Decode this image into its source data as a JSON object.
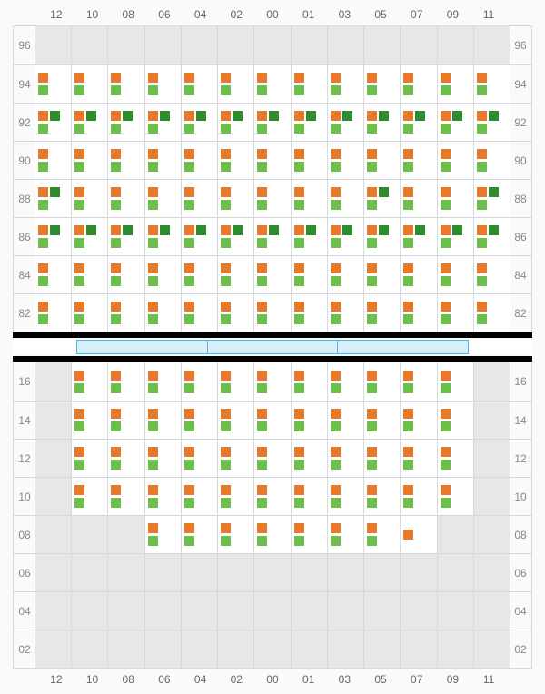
{
  "colors": {
    "orange": "#e7792b",
    "green": "#6bbf4a",
    "dgreen": "#2e8b2e",
    "empty_bg": "#e6e7e8",
    "active_bg": "#ffffff",
    "grid_line": "#d6d9dc",
    "stage_border": "#4fb7e6",
    "stage_fill": "#d6effa"
  },
  "columns": [
    "12",
    "10",
    "08",
    "06",
    "04",
    "02",
    "00",
    "01",
    "03",
    "05",
    "07",
    "09",
    "11"
  ],
  "top": {
    "row_labels": [
      "96",
      "94",
      "92",
      "90",
      "88",
      "86",
      "84",
      "82"
    ],
    "cells": [
      [
        [
          0
        ],
        [
          0
        ],
        [
          0
        ],
        [
          0
        ],
        [
          0
        ],
        [
          0
        ],
        [
          0
        ],
        [
          0
        ],
        [
          0
        ],
        [
          0
        ],
        [
          0
        ],
        [
          0
        ],
        [
          0
        ]
      ],
      [
        [
          1,
          2
        ],
        [
          1,
          2
        ],
        [
          1,
          2
        ],
        [
          1,
          2
        ],
        [
          1,
          2
        ],
        [
          1,
          2
        ],
        [
          1,
          2
        ],
        [
          1,
          2
        ],
        [
          1,
          2
        ],
        [
          1,
          2
        ],
        [
          1,
          2
        ],
        [
          1,
          2
        ],
        [
          1,
          2
        ]
      ],
      [
        [
          4,
          2
        ],
        [
          4,
          2
        ],
        [
          4,
          2
        ],
        [
          4,
          2
        ],
        [
          4,
          2
        ],
        [
          4,
          2
        ],
        [
          4,
          2
        ],
        [
          4,
          2
        ],
        [
          4,
          2
        ],
        [
          4,
          2
        ],
        [
          4,
          2
        ],
        [
          4,
          2
        ],
        [
          4,
          2
        ]
      ],
      [
        [
          1,
          2
        ],
        [
          1,
          2
        ],
        [
          1,
          2
        ],
        [
          1,
          2
        ],
        [
          1,
          2
        ],
        [
          1,
          2
        ],
        [
          1,
          2
        ],
        [
          1,
          2
        ],
        [
          1,
          2
        ],
        [
          1,
          2
        ],
        [
          1,
          2
        ],
        [
          1,
          2
        ],
        [
          1,
          2
        ]
      ],
      [
        [
          4,
          2
        ],
        [
          1,
          2
        ],
        [
          1,
          2
        ],
        [
          1,
          2
        ],
        [
          1,
          2
        ],
        [
          1,
          2
        ],
        [
          1,
          2
        ],
        [
          1,
          2
        ],
        [
          1,
          2
        ],
        [
          4,
          2
        ],
        [
          1,
          2
        ],
        [
          1,
          2
        ],
        [
          4,
          2
        ]
      ],
      [
        [
          4,
          2
        ],
        [
          4,
          2
        ],
        [
          4,
          2
        ],
        [
          4,
          2
        ],
        [
          4,
          2
        ],
        [
          4,
          2
        ],
        [
          4,
          2
        ],
        [
          4,
          2
        ],
        [
          4,
          2
        ],
        [
          4,
          2
        ],
        [
          4,
          2
        ],
        [
          4,
          2
        ],
        [
          4,
          2
        ]
      ],
      [
        [
          1,
          2
        ],
        [
          1,
          2
        ],
        [
          1,
          2
        ],
        [
          1,
          2
        ],
        [
          1,
          2
        ],
        [
          1,
          2
        ],
        [
          1,
          2
        ],
        [
          1,
          2
        ],
        [
          1,
          2
        ],
        [
          1,
          2
        ],
        [
          1,
          2
        ],
        [
          1,
          2
        ],
        [
          1,
          2
        ]
      ],
      [
        [
          1,
          2
        ],
        [
          1,
          2
        ],
        [
          1,
          2
        ],
        [
          1,
          2
        ],
        [
          1,
          2
        ],
        [
          1,
          2
        ],
        [
          1,
          2
        ],
        [
          1,
          2
        ],
        [
          1,
          2
        ],
        [
          1,
          2
        ],
        [
          1,
          2
        ],
        [
          1,
          2
        ],
        [
          1,
          2
        ]
      ]
    ]
  },
  "bot": {
    "row_labels": [
      "16",
      "14",
      "12",
      "10",
      "08",
      "06",
      "04",
      "02"
    ],
    "cells": [
      [
        [
          0
        ],
        [
          1,
          2
        ],
        [
          1,
          2
        ],
        [
          1,
          2
        ],
        [
          1,
          2
        ],
        [
          1,
          2
        ],
        [
          1,
          2
        ],
        [
          1,
          2
        ],
        [
          1,
          2
        ],
        [
          1,
          2
        ],
        [
          1,
          2
        ],
        [
          1,
          2
        ],
        [
          0
        ]
      ],
      [
        [
          0
        ],
        [
          1,
          2
        ],
        [
          1,
          2
        ],
        [
          1,
          2
        ],
        [
          1,
          2
        ],
        [
          1,
          2
        ],
        [
          1,
          2
        ],
        [
          1,
          2
        ],
        [
          1,
          2
        ],
        [
          1,
          2
        ],
        [
          1,
          2
        ],
        [
          1,
          2
        ],
        [
          0
        ]
      ],
      [
        [
          0
        ],
        [
          1,
          2
        ],
        [
          1,
          2
        ],
        [
          1,
          2
        ],
        [
          1,
          2
        ],
        [
          1,
          2
        ],
        [
          1,
          2
        ],
        [
          1,
          2
        ],
        [
          1,
          2
        ],
        [
          1,
          2
        ],
        [
          1,
          2
        ],
        [
          1,
          2
        ],
        [
          0
        ]
      ],
      [
        [
          0
        ],
        [
          1,
          2
        ],
        [
          1,
          2
        ],
        [
          1,
          2
        ],
        [
          1,
          2
        ],
        [
          1,
          2
        ],
        [
          1,
          2
        ],
        [
          1,
          2
        ],
        [
          1,
          2
        ],
        [
          1,
          2
        ],
        [
          1,
          2
        ],
        [
          1,
          2
        ],
        [
          0
        ]
      ],
      [
        [
          0
        ],
        [
          0
        ],
        [
          0
        ],
        [
          1,
          2
        ],
        [
          1,
          2
        ],
        [
          1,
          2
        ],
        [
          1,
          2
        ],
        [
          1,
          2
        ],
        [
          1,
          2
        ],
        [
          1,
          2
        ],
        [
          1
        ],
        [
          0
        ],
        [
          0
        ]
      ],
      [
        [
          0
        ],
        [
          0
        ],
        [
          0
        ],
        [
          0
        ],
        [
          0
        ],
        [
          0
        ],
        [
          0
        ],
        [
          0
        ],
        [
          0
        ],
        [
          0
        ],
        [
          0
        ],
        [
          0
        ],
        [
          0
        ]
      ],
      [
        [
          0
        ],
        [
          0
        ],
        [
          0
        ],
        [
          0
        ],
        [
          0
        ],
        [
          0
        ],
        [
          0
        ],
        [
          0
        ],
        [
          0
        ],
        [
          0
        ],
        [
          0
        ],
        [
          0
        ],
        [
          0
        ]
      ],
      [
        [
          0
        ],
        [
          0
        ],
        [
          0
        ],
        [
          0
        ],
        [
          0
        ],
        [
          0
        ],
        [
          0
        ],
        [
          0
        ],
        [
          0
        ],
        [
          0
        ],
        [
          0
        ],
        [
          0
        ],
        [
          0
        ]
      ]
    ]
  },
  "stage_segments": 3
}
